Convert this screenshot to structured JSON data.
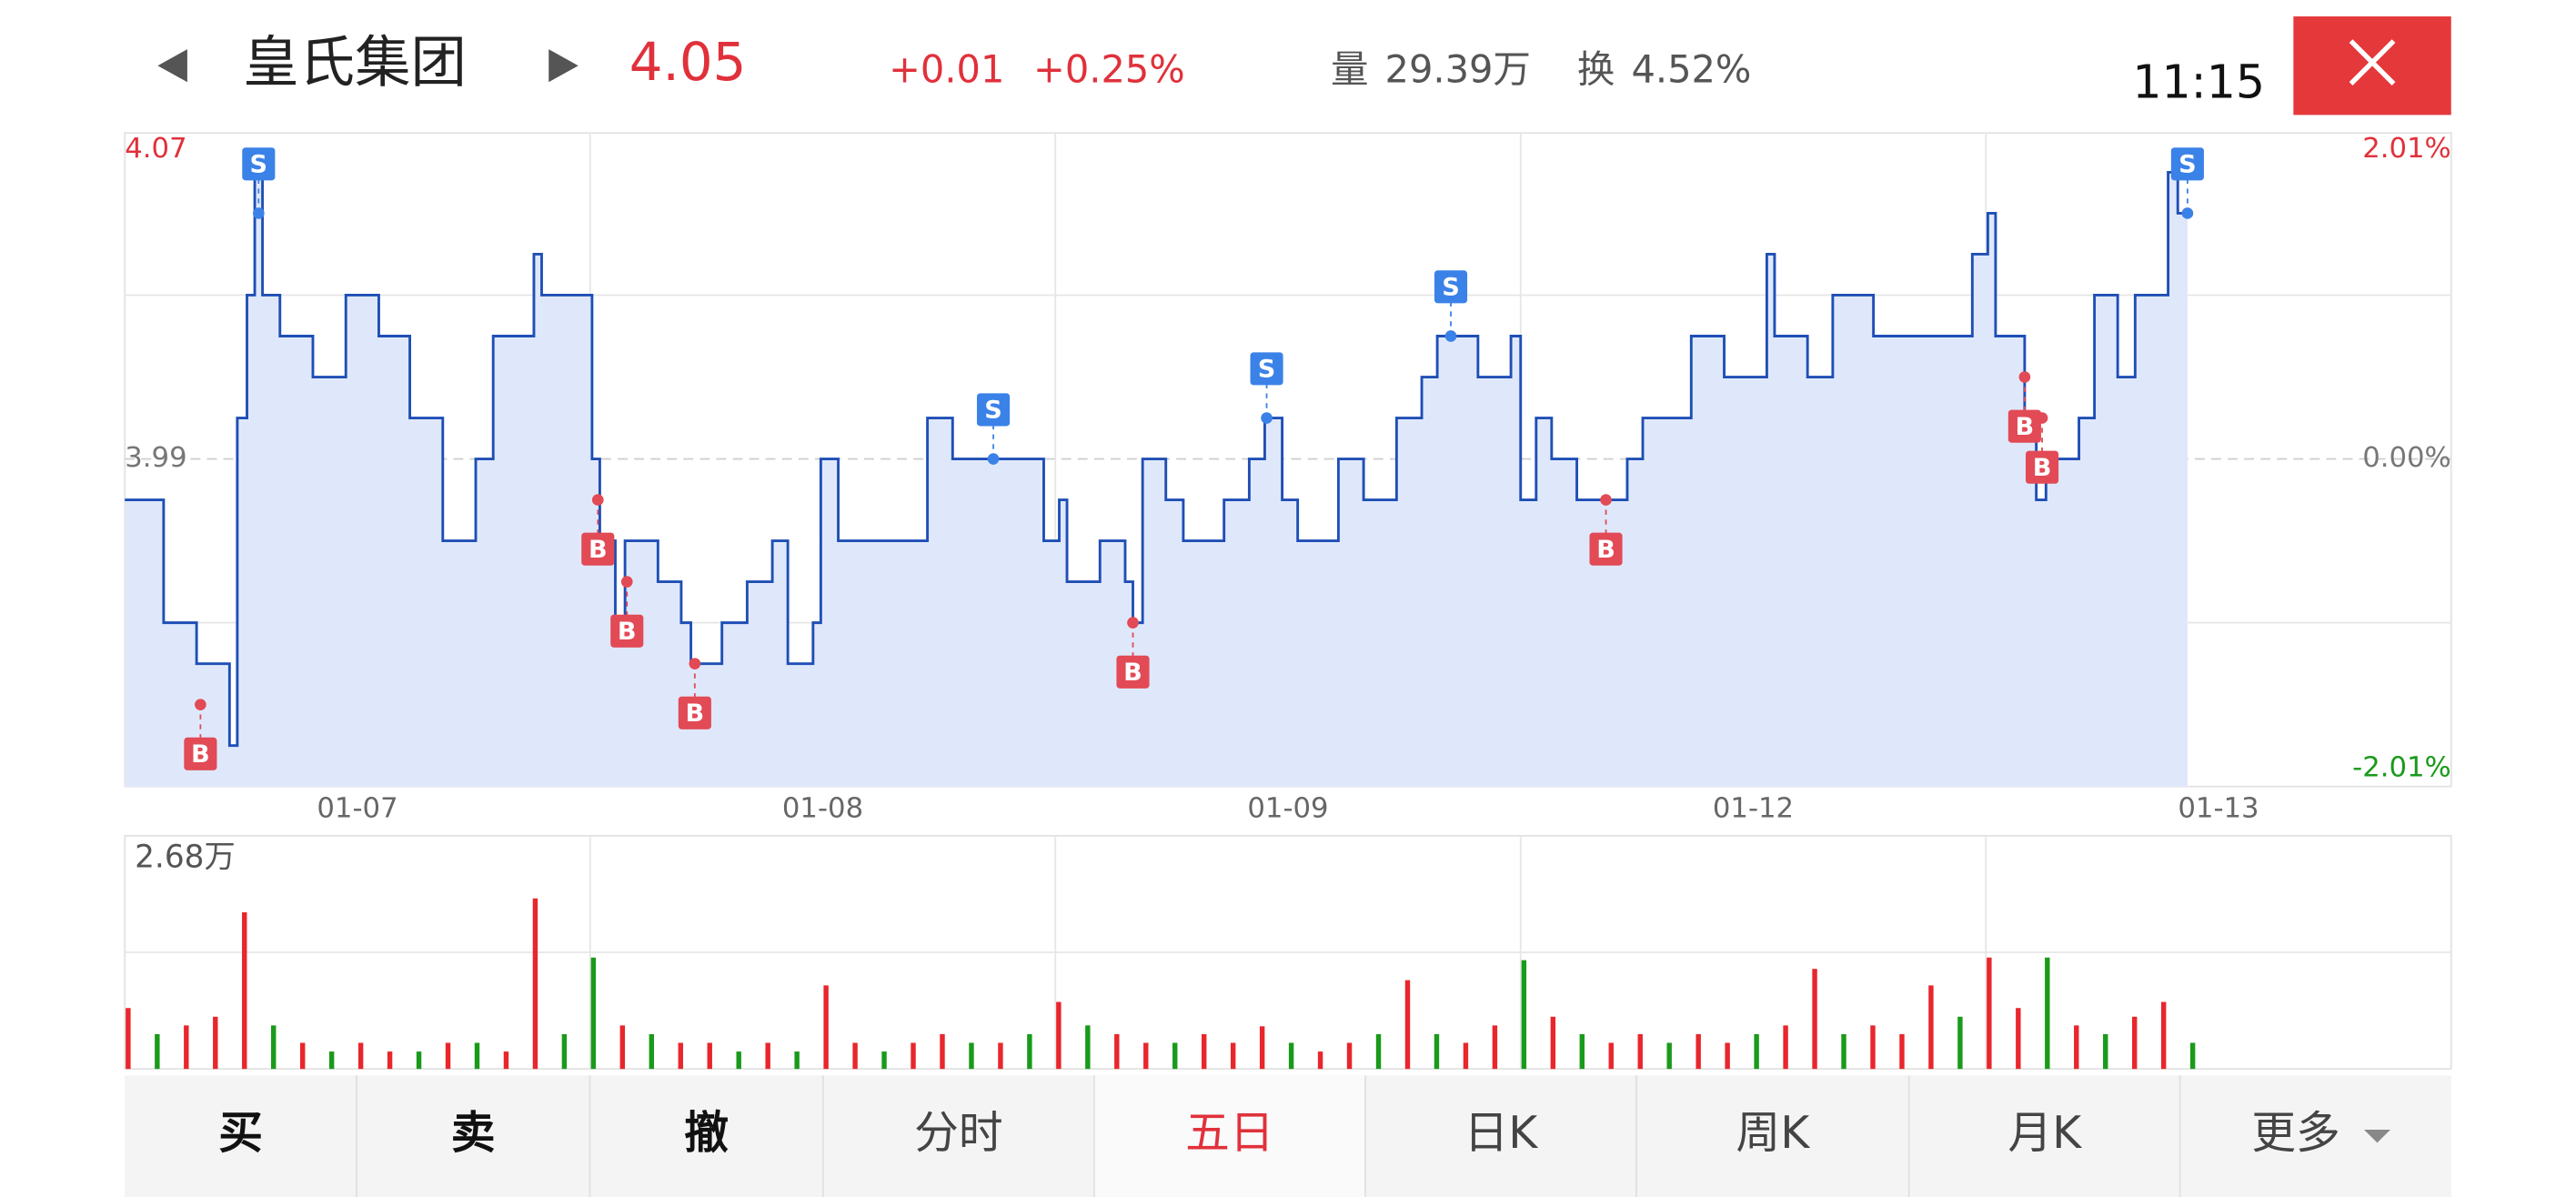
{
  "header": {
    "stock_name": "皇氏集团",
    "price": "4.05",
    "change": "+0.01",
    "change_pct": "+0.25%",
    "volume_label": "量",
    "volume": "29.39万",
    "turnover_label": "换",
    "turnover": "4.52%",
    "time": "11:15"
  },
  "chart_data": {
    "type": "line",
    "color": "#1f4fb5",
    "area_color": "#dfe8fb",
    "xlim": [
      0,
      1200
    ],
    "xticks": [
      {
        "value": 120,
        "label": "01-07"
      },
      {
        "value": 360,
        "label": "01-08"
      },
      {
        "value": 600,
        "label": "01-09"
      },
      {
        "value": 840,
        "label": "01-12"
      },
      {
        "value": 1080,
        "label": "01-13"
      }
    ],
    "ylim": [
      3.91,
      4.07
    ],
    "yticks": [
      3.91,
      3.99,
      4.07
    ],
    "y2lim": [
      -2.01,
      2.01
    ],
    "y2ticks": [
      {
        "value": -2.01,
        "label": "-2.01%"
      },
      {
        "value": 0,
        "label": "0.00%"
      },
      {
        "value": 2.01,
        "label": "2.01%"
      }
    ],
    "x": [
      0,
      20,
      37,
      54,
      58,
      63,
      67,
      71,
      80,
      97,
      114,
      131,
      147,
      164,
      181,
      190,
      211,
      215,
      236,
      241,
      245,
      253,
      258,
      275,
      287,
      292,
      308,
      321,
      334,
      342,
      355,
      359,
      368,
      393,
      414,
      427,
      444,
      461,
      474,
      482,
      486,
      503,
      516,
      520,
      525,
      537,
      546,
      567,
      580,
      588,
      597,
      605,
      622,
      626,
      639,
      656,
      669,
      677,
      698,
      715,
      720,
      728,
      736,
      749,
      766,
      775,
      783,
      808,
      825,
      847,
      851,
      868,
      881,
      902,
      927,
      953,
      961,
      965,
      974,
      980,
      986,
      991,
      1008,
      1016,
      1028,
      1037,
      1054,
      1059,
      1064
    ],
    "values": [
      3.98,
      3.95,
      3.94,
      3.92,
      4.0,
      4.03,
      4.06,
      4.03,
      4.02,
      4.01,
      4.03,
      4.02,
      4.0,
      3.97,
      3.99,
      4.02,
      4.04,
      4.03,
      4.03,
      3.99,
      3.97,
      3.95,
      3.97,
      3.96,
      3.95,
      3.94,
      3.95,
      3.96,
      3.97,
      3.94,
      3.95,
      3.99,
      3.97,
      3.97,
      4.0,
      3.99,
      3.99,
      3.99,
      3.97,
      3.98,
      3.96,
      3.97,
      3.96,
      3.95,
      3.99,
      3.98,
      3.97,
      3.98,
      3.99,
      4.0,
      3.98,
      3.97,
      3.97,
      3.99,
      3.98,
      4.0,
      4.01,
      4.02,
      4.01,
      4.02,
      3.98,
      4.0,
      3.99,
      3.98,
      3.98,
      3.99,
      4.0,
      4.02,
      4.01,
      4.04,
      4.02,
      4.01,
      4.03,
      4.02,
      4.02,
      4.04,
      4.05,
      4.02,
      4.02,
      4.0,
      3.98,
      3.99,
      4.0,
      4.03,
      4.01,
      4.03,
      4.06,
      4.05,
      4.05
    ],
    "trades": [
      {
        "side": "B",
        "x": 39,
        "price": 3.93
      },
      {
        "side": "S",
        "x": 69,
        "price": 4.05
      },
      {
        "side": "B",
        "x": 244,
        "price": 3.98
      },
      {
        "side": "B",
        "x": 259,
        "price": 3.96
      },
      {
        "side": "B",
        "x": 294,
        "price": 3.94
      },
      {
        "side": "S",
        "x": 448,
        "price": 3.99
      },
      {
        "side": "B",
        "x": 520,
        "price": 3.95
      },
      {
        "side": "S",
        "x": 589,
        "price": 4.0
      },
      {
        "side": "S",
        "x": 684,
        "price": 4.02
      },
      {
        "side": "B",
        "x": 764,
        "price": 3.98
      },
      {
        "side": "B",
        "x": 980,
        "price": 4.01
      },
      {
        "side": "B",
        "x": 989,
        "price": 4.0
      },
      {
        "side": "S",
        "x": 1064,
        "price": 4.05
      }
    ],
    "trade_colors": {
      "B": "#e24a55",
      "S": "#3b82e8"
    },
    "volume": {
      "ylim": [
        0,
        2.68
      ],
      "yticks": [
        {
          "value": 2.68,
          "label": "2.68万"
        }
      ],
      "x": [
        0,
        15,
        30,
        45,
        60,
        75,
        90,
        105,
        120,
        135,
        150,
        165,
        180,
        195,
        210,
        225,
        240,
        255,
        270,
        285,
        300,
        315,
        330,
        345,
        360,
        375,
        390,
        405,
        420,
        435,
        450,
        465,
        480,
        495,
        510,
        525,
        540,
        555,
        570,
        585,
        600,
        615,
        630,
        645,
        660,
        675,
        690,
        705,
        720,
        735,
        750,
        765,
        780,
        795,
        810,
        825,
        840,
        855,
        870,
        885,
        900,
        915,
        930,
        945,
        960,
        975,
        990,
        1005,
        1020,
        1035,
        1050,
        1065
      ],
      "values": [
        0.7,
        0.4,
        0.5,
        0.6,
        1.8,
        0.5,
        0.3,
        0.2,
        0.3,
        0.2,
        0.2,
        0.3,
        0.3,
        0.2,
        1.96,
        0.4,
        1.28,
        0.5,
        0.4,
        0.3,
        0.3,
        0.2,
        0.3,
        0.2,
        0.96,
        0.3,
        0.2,
        0.3,
        0.4,
        0.3,
        0.3,
        0.4,
        0.77,
        0.5,
        0.4,
        0.3,
        0.3,
        0.4,
        0.3,
        0.49,
        0.3,
        0.2,
        0.3,
        0.4,
        1.02,
        0.4,
        0.3,
        0.5,
        1.25,
        0.6,
        0.4,
        0.3,
        0.4,
        0.3,
        0.4,
        0.3,
        0.4,
        0.5,
        1.15,
        0.4,
        0.5,
        0.4,
        0.96,
        0.6,
        1.28,
        0.7,
        1.28,
        0.5,
        0.4,
        0.6,
        0.77,
        0.3
      ],
      "colors": [
        "#e8262c",
        "#1a9a1a",
        "#e8262c",
        "#e8262c",
        "#e8262c",
        "#1a9a1a",
        "#e8262c",
        "#1a9a1a",
        "#e8262c",
        "#e8262c",
        "#1a9a1a",
        "#e8262c",
        "#1a9a1a",
        "#e8262c",
        "#e8262c",
        "#1a9a1a",
        "#1a9a1a",
        "#e8262c",
        "#1a9a1a",
        "#e8262c",
        "#e8262c",
        "#1a9a1a",
        "#e8262c",
        "#1a9a1a",
        "#e8262c",
        "#e8262c",
        "#1a9a1a",
        "#e8262c",
        "#e8262c",
        "#1a9a1a",
        "#e8262c",
        "#1a9a1a",
        "#e8262c",
        "#1a9a1a",
        "#e8262c",
        "#e8262c",
        "#1a9a1a",
        "#e8262c",
        "#e8262c",
        "#e8262c",
        "#1a9a1a",
        "#e8262c",
        "#e8262c",
        "#1a9a1a",
        "#e8262c",
        "#1a9a1a",
        "#e8262c",
        "#e8262c",
        "#1a9a1a",
        "#e8262c",
        "#1a9a1a",
        "#e8262c",
        "#e8262c",
        "#1a9a1a",
        "#e8262c",
        "#e8262c",
        "#1a9a1a",
        "#e8262c",
        "#e8262c",
        "#1a9a1a",
        "#e8262c",
        "#e8262c",
        "#e8262c",
        "#1a9a1a",
        "#e8262c",
        "#e8262c",
        "#1a9a1a",
        "#e8262c",
        "#1a9a1a",
        "#e8262c",
        "#e8262c",
        "#1a9a1a"
      ]
    }
  },
  "toolbar": {
    "buttons": [
      "买",
      "卖",
      "撤",
      "分时",
      "五日",
      "日K",
      "周K",
      "月K",
      "更多"
    ],
    "active": 4
  }
}
